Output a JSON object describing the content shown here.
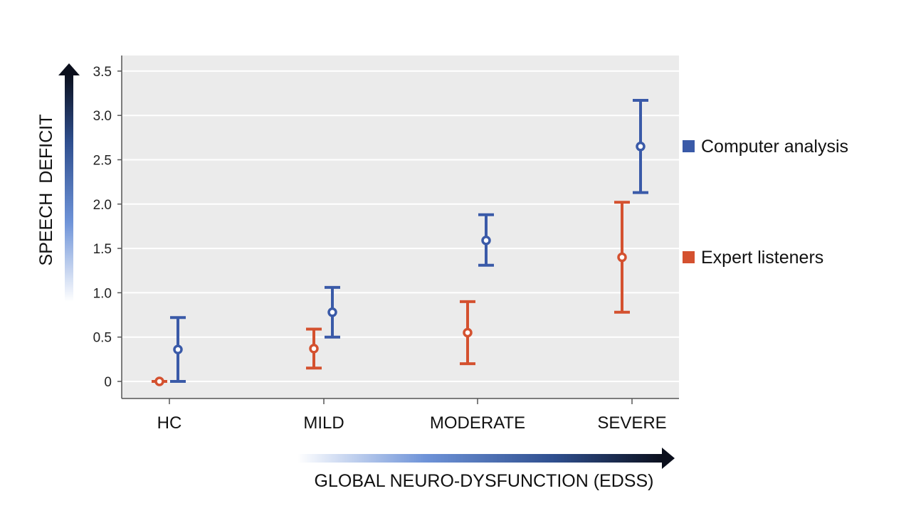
{
  "chart_data": {
    "type": "errorbar",
    "categories": [
      "HC",
      "MILD",
      "MODERATE",
      "SEVERE"
    ],
    "xlabel": "GLOBAL NEURO-DYSFUNCTION (EDSS)",
    "ylabel": "SPEECH DEFICIT",
    "ylim": [
      -0.2,
      3.6
    ],
    "yticks": [
      0,
      0.5,
      1.0,
      1.5,
      2.0,
      2.5,
      3.0,
      3.5
    ],
    "ytick_labels": [
      "0",
      "0.5",
      "1.0",
      "1.5",
      "2.0",
      "2.5",
      "3.0",
      "3.5"
    ],
    "grid": true,
    "legend_position": "right",
    "series": [
      {
        "name": "Computer analysis",
        "color": "#3a5aa8",
        "values": [
          0.36,
          0.78,
          1.59,
          2.65
        ],
        "lower": [
          0.0,
          0.5,
          1.31,
          2.13
        ],
        "upper": [
          0.72,
          1.06,
          1.88,
          3.17
        ]
      },
      {
        "name": "Expert listeners",
        "color": "#d4512f",
        "values": [
          0.0,
          0.37,
          0.55,
          1.4
        ],
        "lower": [
          0.0,
          0.15,
          0.2,
          0.78
        ],
        "upper": [
          0.0,
          0.59,
          0.9,
          2.02
        ]
      }
    ]
  }
}
